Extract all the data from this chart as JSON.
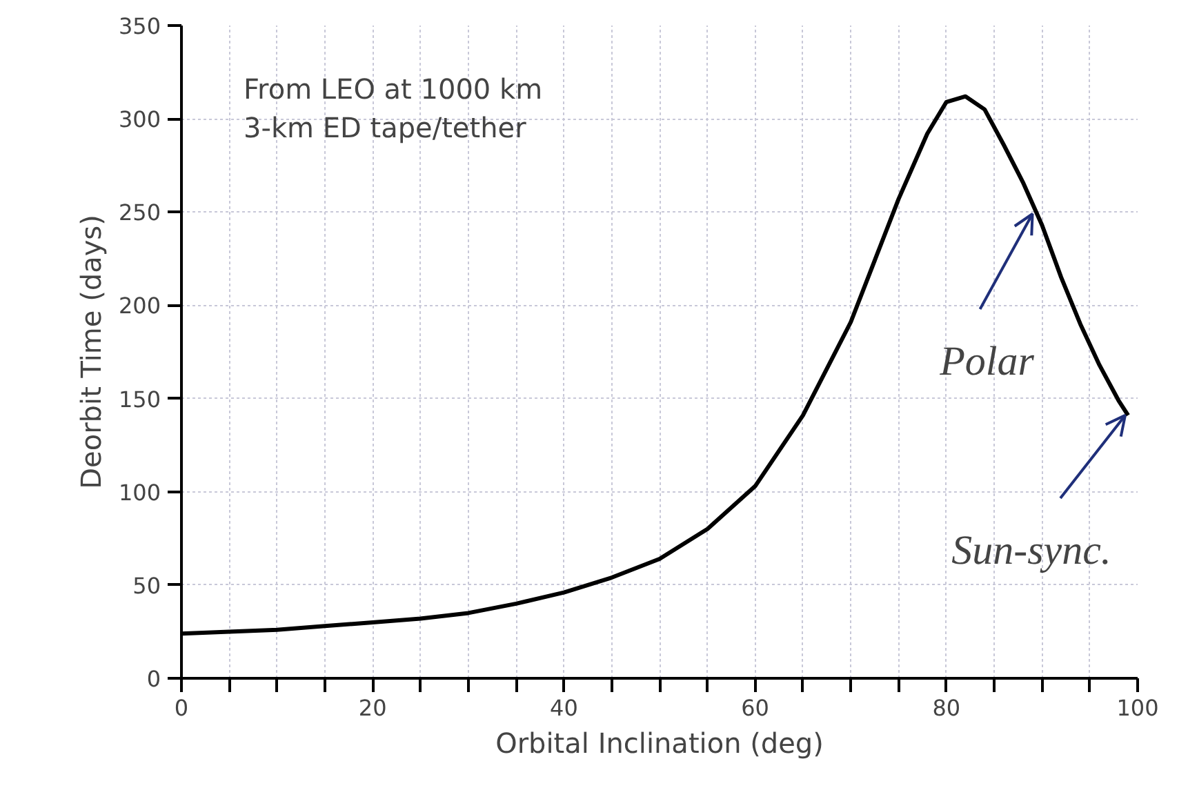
{
  "chart_data": {
    "type": "line",
    "xlabel": "Orbital Inclination (deg)",
    "ylabel": "Deorbit Time (days)",
    "x": [
      0,
      5,
      10,
      15,
      20,
      25,
      30,
      35,
      40,
      45,
      50,
      55,
      60,
      65,
      70,
      75,
      78,
      80,
      82,
      84,
      86,
      88,
      90,
      92,
      94,
      96,
      98,
      99
    ],
    "series": [
      {
        "color": "#000000",
        "values": [
          24,
          25,
          26,
          28,
          30,
          32,
          35,
          40,
          46,
          54,
          64,
          80,
          103,
          141,
          191,
          257,
          292,
          309,
          312,
          305,
          286,
          266,
          243,
          215,
          190,
          168,
          149,
          141
        ]
      }
    ],
    "xlim": [
      0,
      100
    ],
    "xticks": [
      0,
      {
        "value": 5,
        "label": null
      },
      {
        "value": 10,
        "label": null
      },
      {
        "value": 15,
        "label": null
      },
      20,
      {
        "value": 25,
        "label": null
      },
      {
        "value": 30,
        "label": null
      },
      {
        "value": 35,
        "label": null
      },
      40,
      {
        "value": 45,
        "label": null
      },
      {
        "value": 50,
        "label": null
      },
      {
        "value": 55,
        "label": null
      },
      60,
      {
        "value": 65,
        "label": null
      },
      {
        "value": 70,
        "label": null
      },
      {
        "value": 75,
        "label": null
      },
      80,
      {
        "value": 85,
        "label": null
      },
      {
        "value": 90,
        "label": null
      },
      {
        "value": 95,
        "label": null
      },
      100
    ],
    "ylim": [
      0,
      350
    ],
    "yticks": [
      0,
      50,
      100,
      150,
      200,
      250,
      300,
      350
    ],
    "grid": true,
    "marker": "none",
    "line_style": "solid",
    "annotations": [
      "From LEO at 1000 km",
      "3-km ED tape/tether",
      {
        "text": "Polar",
        "x": 89,
        "y": 249
      },
      {
        "text": "Sun-sync.",
        "x": 98.7,
        "y": 141
      }
    ]
  }
}
